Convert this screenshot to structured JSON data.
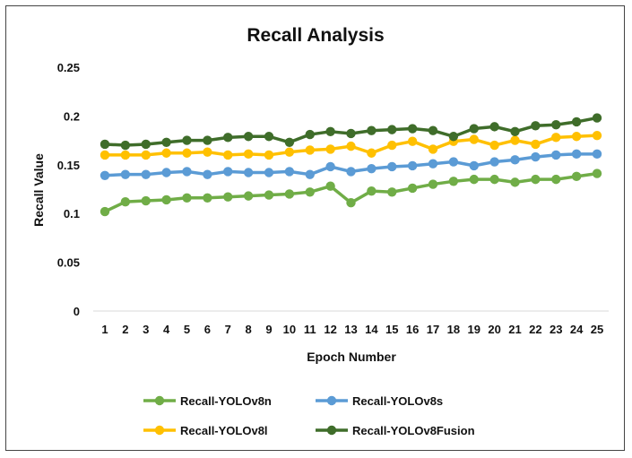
{
  "chart_data": {
    "type": "line",
    "title": "Recall Analysis",
    "xlabel": "Epoch Number",
    "ylabel": "Recall Value",
    "ylim": [
      0,
      0.25
    ],
    "y_ticks": [
      "0",
      "0.05",
      "0.1",
      "0.15",
      "0.2",
      "0.25"
    ],
    "y_tick_values": [
      0,
      0.05,
      0.1,
      0.15,
      0.2,
      0.25
    ],
    "categories": [
      "1",
      "2",
      "3",
      "4",
      "5",
      "6",
      "7",
      "8",
      "9",
      "10",
      "11",
      "12",
      "13",
      "14",
      "15",
      "16",
      "17",
      "18",
      "19",
      "20",
      "21",
      "22",
      "23",
      "24",
      "25"
    ],
    "grid": false,
    "legend_position": "bottom",
    "series": [
      {
        "name": "Recall-YOLOv8n",
        "color": "#70ad47",
        "values": [
          0.102,
          0.112,
          0.113,
          0.114,
          0.116,
          0.116,
          0.117,
          0.118,
          0.119,
          0.12,
          0.122,
          0.128,
          0.111,
          0.123,
          0.122,
          0.126,
          0.13,
          0.133,
          0.135,
          0.135,
          0.132,
          0.135,
          0.135,
          0.138,
          0.141
        ]
      },
      {
        "name": "Recall-YOLOv8s",
        "color": "#5b9bd5",
        "values": [
          0.139,
          0.14,
          0.14,
          0.142,
          0.143,
          0.14,
          0.143,
          0.142,
          0.142,
          0.143,
          0.14,
          0.148,
          0.143,
          0.146,
          0.148,
          0.149,
          0.151,
          0.153,
          0.149,
          0.153,
          0.155,
          0.158,
          0.16,
          0.161,
          0.161
        ]
      },
      {
        "name": "Recall-YOLOv8l",
        "color": "#ffc000",
        "values": [
          0.16,
          0.16,
          0.16,
          0.162,
          0.162,
          0.163,
          0.16,
          0.161,
          0.16,
          0.163,
          0.165,
          0.166,
          0.169,
          0.162,
          0.17,
          0.174,
          0.166,
          0.174,
          0.176,
          0.17,
          0.175,
          0.171,
          0.178,
          0.179,
          0.18
        ]
      },
      {
        "name": "Recall-YOLOv8Fusion",
        "color": "#3f6d2a",
        "values": [
          0.171,
          0.17,
          0.171,
          0.173,
          0.175,
          0.175,
          0.178,
          0.179,
          0.179,
          0.173,
          0.181,
          0.184,
          0.182,
          0.185,
          0.186,
          0.187,
          0.185,
          0.179,
          0.187,
          0.189,
          0.184,
          0.19,
          0.191,
          0.194,
          0.198
        ]
      }
    ]
  }
}
